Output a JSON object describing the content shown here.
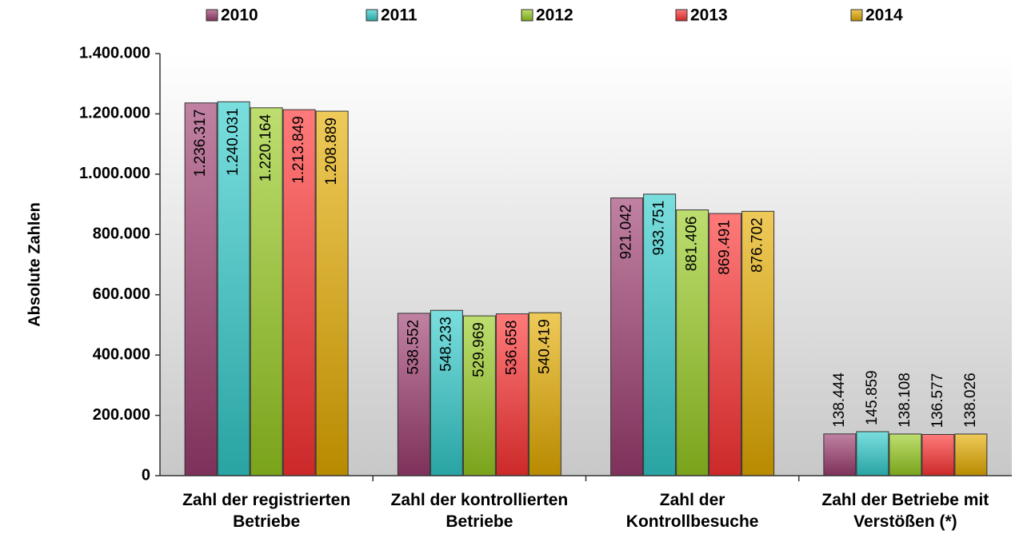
{
  "chart_data": {
    "type": "bar",
    "y_axis_label": "Absolute Zahlen",
    "categories": [
      "Zahl der registrierten Betriebe",
      "Zahl der kontrollierten Betriebe",
      "Zahl der Kontrollbesuche",
      "Zahl der Betriebe mit Verstößen (*)"
    ],
    "series": [
      {
        "name": "2010",
        "color": "#9e3d70",
        "values": [
          1236317,
          538552,
          921042,
          138444
        ],
        "value_labels": [
          "1.236.317",
          "538.552",
          "921.042",
          "138.444"
        ]
      },
      {
        "name": "2011",
        "color": "#33cccc",
        "values": [
          1240031,
          548233,
          933751,
          145859
        ],
        "value_labels": [
          "1.240.031",
          "548.233",
          "933.751",
          "145.859"
        ]
      },
      {
        "name": "2012",
        "color": "#99cc22",
        "values": [
          1220164,
          529969,
          881406,
          138108
        ],
        "value_labels": [
          "1.220.164",
          "529.969",
          "881.406",
          "138.108"
        ]
      },
      {
        "name": "2013",
        "color": "#ff3333",
        "values": [
          1213849,
          536658,
          869491,
          136577
        ],
        "value_labels": [
          "1.213.849",
          "536.658",
          "869.491",
          "136.577"
        ]
      },
      {
        "name": "2014",
        "color": "#e6ad00",
        "values": [
          1208889,
          540419,
          876702,
          138026
        ],
        "value_labels": [
          "1.208.889",
          "540.419",
          "876.702",
          "138.026"
        ]
      }
    ],
    "ylim": [
      0,
      1400000
    ],
    "yticks": [
      {
        "value": 0,
        "label": "0"
      },
      {
        "value": 200000,
        "label": "200.000"
      },
      {
        "value": 400000,
        "label": "400.000"
      },
      {
        "value": 600000,
        "label": "600.000"
      },
      {
        "value": 800000,
        "label": "800.000"
      },
      {
        "value": 1000000,
        "label": "1.000.000"
      },
      {
        "value": 1200000,
        "label": "1.200.000"
      },
      {
        "value": 1400000,
        "label": "1.400.000"
      }
    ],
    "grid": false,
    "legend": "top"
  }
}
